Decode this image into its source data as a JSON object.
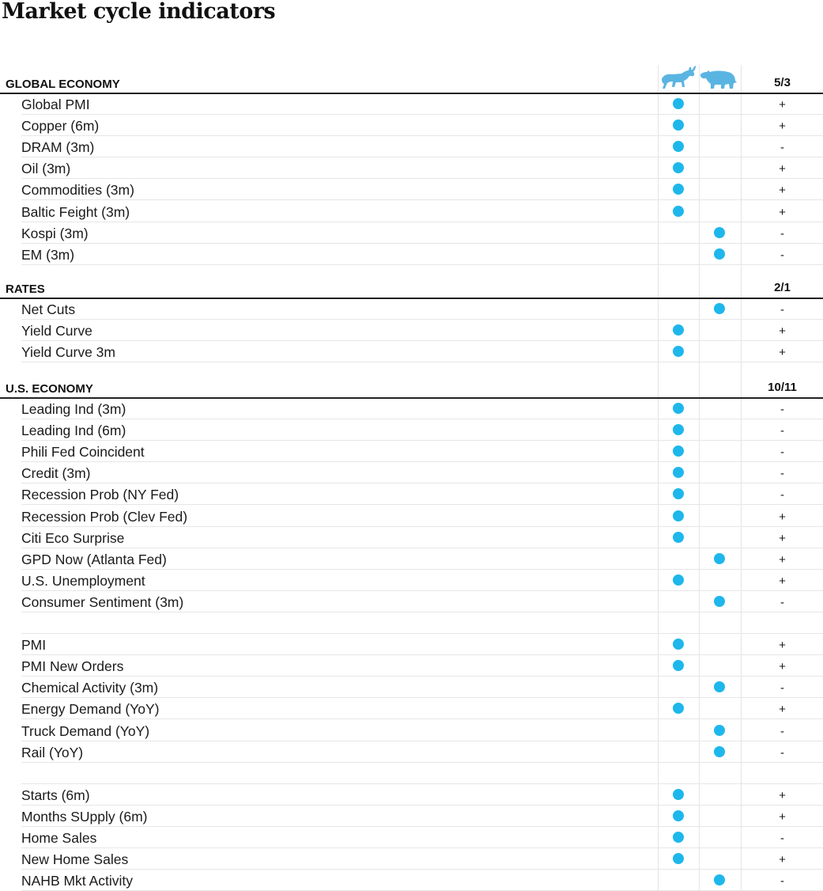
{
  "title": "Market cycle indicators",
  "colors": {
    "dot": "#1eb7ec",
    "icon": "#5ab4e2",
    "rule": "#222222"
  },
  "icons": {
    "bull": "bull-icon",
    "bear": "bear-icon"
  },
  "sections": [
    {
      "label": "GLOBAL ECONOMY",
      "score": "5/3",
      "rows": [
        {
          "label": "Global PMI",
          "signal": "bull",
          "sign": "+"
        },
        {
          "label": "Copper (6m)",
          "signal": "bull",
          "sign": "+"
        },
        {
          "label": "DRAM (3m)",
          "signal": "bull",
          "sign": "-"
        },
        {
          "label": "Oil (3m)",
          "signal": "bull",
          "sign": "+"
        },
        {
          "label": "Commodities (3m)",
          "signal": "bull",
          "sign": "+"
        },
        {
          "label": "Baltic Feight (3m)",
          "signal": "bull",
          "sign": "+"
        },
        {
          "label": "Kospi (3m)",
          "signal": "bear",
          "sign": "-"
        },
        {
          "label": "EM (3m)",
          "signal": "bear",
          "sign": "-"
        }
      ]
    },
    {
      "label": "RATES",
      "score": "2/1",
      "rows": [
        {
          "label": "Net Cuts",
          "signal": "bear",
          "sign": "-"
        },
        {
          "label": "Yield Curve",
          "signal": "bull",
          "sign": "+"
        },
        {
          "label": "Yield Curve 3m",
          "signal": "bull",
          "sign": "+"
        }
      ]
    },
    {
      "label": "U.S. ECONOMY",
      "score": "10/11",
      "rows": [
        {
          "label": "Leading Ind (3m)",
          "signal": "bull",
          "sign": "-"
        },
        {
          "label": "Leading Ind (6m)",
          "signal": "bull",
          "sign": "-"
        },
        {
          "label": "Phili Fed Coincident",
          "signal": "bull",
          "sign": "-"
        },
        {
          "label": "Credit (3m)",
          "signal": "bull",
          "sign": "-"
        },
        {
          "label": "Recession Prob (NY Fed)",
          "signal": "bull",
          "sign": "-"
        },
        {
          "label": "Recession Prob (Clev Fed)",
          "signal": "bull",
          "sign": "+"
        },
        {
          "label": "Citi Eco Surprise",
          "signal": "bull",
          "sign": "+"
        },
        {
          "label": "GPD Now (Atlanta Fed)",
          "signal": "bear",
          "sign": "+"
        },
        {
          "label": "U.S. Unemployment",
          "signal": "bull",
          "sign": "+"
        },
        {
          "label": "Consumer Sentiment (3m)",
          "signal": "bear",
          "sign": "-"
        },
        {
          "spacer": true
        },
        {
          "label": "PMI",
          "signal": "bull",
          "sign": "+"
        },
        {
          "label": "PMI New Orders",
          "signal": "bull",
          "sign": "+"
        },
        {
          "label": "Chemical Activity (3m)",
          "signal": "bear",
          "sign": "-"
        },
        {
          "label": "Energy Demand (YoY)",
          "signal": "bull",
          "sign": "+"
        },
        {
          "label": "Truck Demand (YoY)",
          "signal": "bear",
          "sign": "-"
        },
        {
          "label": "Rail (YoY)",
          "signal": "bear",
          "sign": "-"
        },
        {
          "spacer": true
        },
        {
          "label": "Starts (6m)",
          "signal": "bull",
          "sign": "+"
        },
        {
          "label": "Months SUpply (6m)",
          "signal": "bull",
          "sign": "+"
        },
        {
          "label": "Home Sales",
          "signal": "bull",
          "sign": "-"
        },
        {
          "label": "New Home Sales",
          "signal": "bull",
          "sign": "+"
        },
        {
          "label": "NAHB Mkt Activity",
          "signal": "bear",
          "sign": "-"
        }
      ]
    }
  ]
}
